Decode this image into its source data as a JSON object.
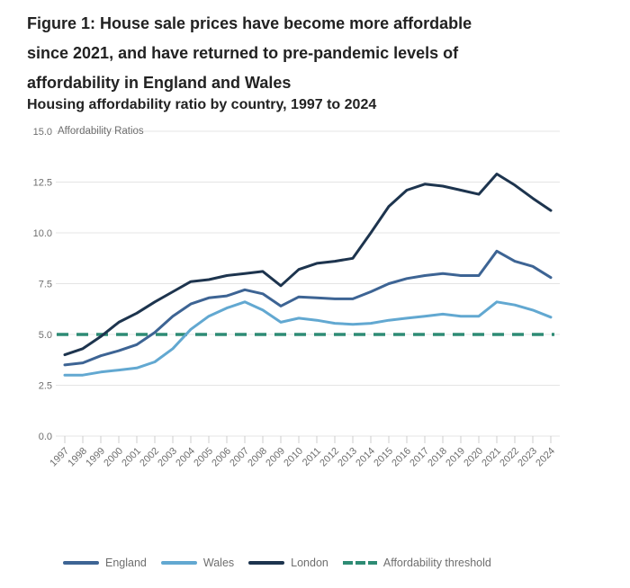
{
  "header": {
    "title_lines": [
      "Figure 1: House sale prices have become more affordable",
      "since 2021, and have returned to pre-pandemic levels of",
      "affordability in England and Wales"
    ],
    "subtitle": "Housing affordability ratio by country, 1997 to 2024"
  },
  "chart_data": {
    "type": "line",
    "axis_title": "Affordability Ratios",
    "xlabel": "",
    "ylabel": "Affordability Ratios",
    "ylim": [
      0,
      15
    ],
    "yticks": [
      0.0,
      2.5,
      5.0,
      7.5,
      10.0,
      12.5,
      15.0
    ],
    "grid": "horizontal",
    "legend_position": "bottom",
    "x": [
      1997,
      1998,
      1999,
      2000,
      2001,
      2002,
      2003,
      2004,
      2005,
      2006,
      2007,
      2008,
      2009,
      2010,
      2011,
      2012,
      2013,
      2014,
      2015,
      2016,
      2017,
      2018,
      2019,
      2020,
      2021,
      2022,
      2023,
      2024
    ],
    "series": [
      {
        "name": "England",
        "color": "#3D6494",
        "values": [
          3.5,
          3.6,
          3.95,
          4.2,
          4.5,
          5.1,
          5.9,
          6.5,
          6.8,
          6.9,
          7.2,
          7.0,
          6.4,
          6.85,
          6.8,
          6.75,
          6.75,
          7.1,
          7.5,
          7.75,
          7.9,
          8.0,
          7.9,
          7.9,
          9.1,
          8.6,
          8.35,
          7.8
        ]
      },
      {
        "name": "Wales",
        "color": "#62A8D1",
        "values": [
          3.0,
          3.0,
          3.15,
          3.25,
          3.35,
          3.65,
          4.3,
          5.25,
          5.9,
          6.3,
          6.6,
          6.2,
          5.6,
          5.8,
          5.7,
          5.55,
          5.5,
          5.55,
          5.7,
          5.8,
          5.9,
          6.0,
          5.9,
          5.9,
          6.6,
          6.45,
          6.2,
          5.85
        ]
      },
      {
        "name": "London",
        "color": "#1D344E",
        "values": [
          4.0,
          4.3,
          4.9,
          5.6,
          6.05,
          6.6,
          7.1,
          7.6,
          7.7,
          7.9,
          8.0,
          8.1,
          7.4,
          8.2,
          8.5,
          8.6,
          8.75,
          10.0,
          11.3,
          12.1,
          12.4,
          12.3,
          12.1,
          11.9,
          12.9,
          12.35,
          11.7,
          11.1
        ]
      }
    ],
    "threshold": {
      "label": "Affordability threshold",
      "value": 5.0,
      "color": "#2E8B74",
      "style": "dashed"
    },
    "text_color": "#6E6E6E",
    "gridline_color": "#E4E4E4",
    "tick_color": "#CCCCCC"
  }
}
